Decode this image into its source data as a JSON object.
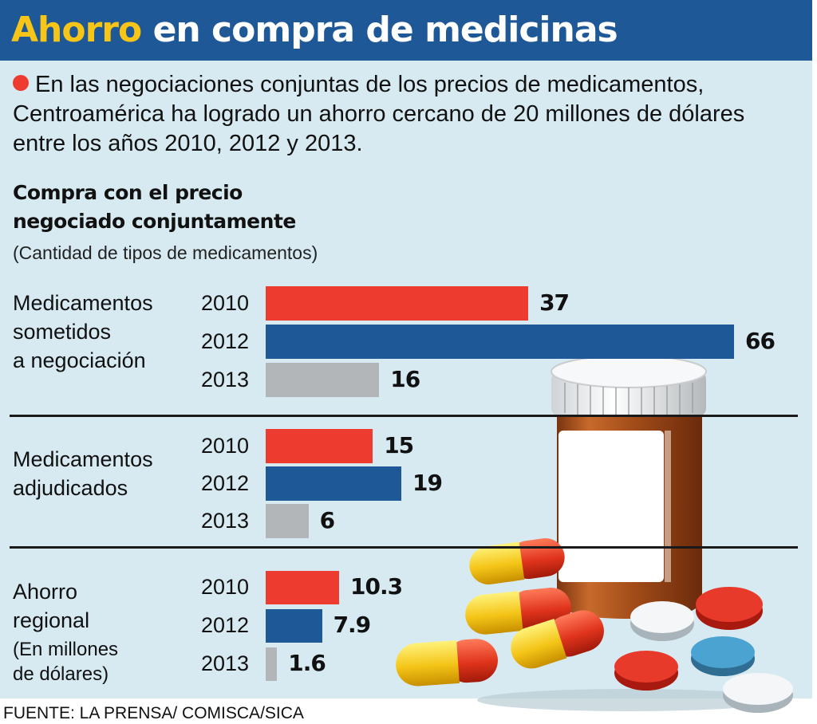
{
  "header": {
    "title_highlight": "Ahorro",
    "title_rest": "en compra de medicinas"
  },
  "intro_text": "En las negociaciones conjuntas de los precios de medicamentos, Centroamérica ha logrado un ahorro cercano de 20 millones de dólares entre los años 2010, 2012 y 2013.",
  "chart_title_1": "Compra con el precio",
  "chart_title_2": "negociado conjuntamente",
  "chart_subtitle": "(Cantidad de tipos de medicamentos)",
  "source": "FUENTE: LA PRENSA/ COMISCA/SICA",
  "colors": {
    "2010": "#ee3b2f",
    "2012": "#1f5896",
    "2013": "#b3b6b8",
    "header_bg": "#1f5896",
    "title_highlight": "#f6c518",
    "panel_bg": "#d7eaf2"
  },
  "chart_data": [
    {
      "type": "bar",
      "orientation": "horizontal",
      "label_lines": [
        "Medicamentos",
        "sometidos",
        "a negociación"
      ],
      "categories": [
        "2010",
        "2012",
        "2013"
      ],
      "values": [
        37,
        66,
        16
      ],
      "value_labels": [
        "37",
        "66",
        "16"
      ]
    },
    {
      "type": "bar",
      "orientation": "horizontal",
      "label_lines": [
        "Medicamentos",
        "adjudicados"
      ],
      "categories": [
        "2010",
        "2012",
        "2013"
      ],
      "values": [
        15,
        19,
        6
      ],
      "value_labels": [
        "15",
        "19",
        "6"
      ]
    },
    {
      "type": "bar",
      "orientation": "horizontal",
      "label_lines": [
        "Ahorro",
        "regional"
      ],
      "label_note_lines": [
        "(En millones",
        "de dólares)"
      ],
      "categories": [
        "2010",
        "2012",
        "2013"
      ],
      "values": [
        10.3,
        7.9,
        1.6
      ],
      "value_labels": [
        "10.3",
        "7.9",
        "1.6"
      ]
    }
  ]
}
